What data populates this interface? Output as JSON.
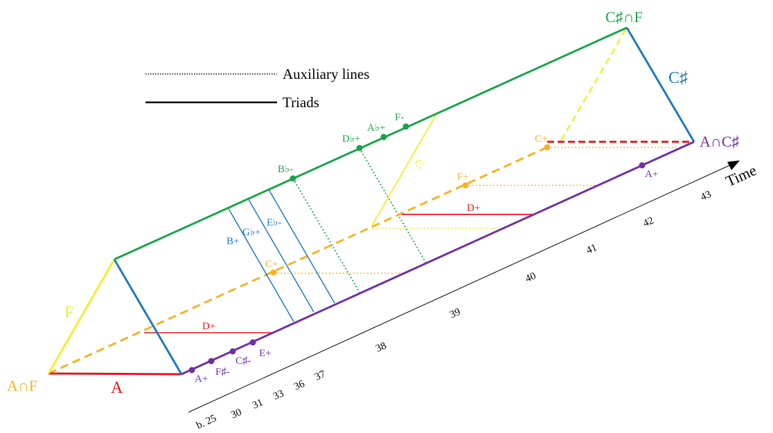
{
  "legend": {
    "auxiliary_label": "Auxiliary lines",
    "triads_label": "Triads"
  },
  "vertices": {
    "a_cap_f": "A∩F",
    "c_sharp_cap_f": "C♯∩F",
    "a_cap_c_sharp": "A∩C♯"
  },
  "edges": {
    "f": "F",
    "a": "A",
    "c_sharp": "C♯"
  },
  "time_axis": {
    "label": "Time",
    "ticks": [
      "b. 25",
      "30",
      "31",
      "33",
      "36",
      "37",
      "38",
      "39",
      "40",
      "41",
      "42",
      "43"
    ]
  },
  "triads": {
    "purple": [
      "A+",
      "F♯-",
      "C♯-",
      "E+",
      "A+"
    ],
    "green": [
      "B♭-",
      "D♭+",
      "A♭+",
      "F-"
    ],
    "blue": [
      "B+",
      "G♭+",
      "E♭-",
      "C♯"
    ],
    "yellow": [
      "C+",
      "F+",
      "C+",
      "C-"
    ],
    "red": [
      "D+",
      "D+"
    ]
  },
  "colors": {
    "green": "#1aa34a",
    "purple": "#7030a0",
    "blue": "#1f77c0",
    "yellow": "#f2ee30",
    "orange": "#f5b324",
    "red": "#e8141a"
  }
}
